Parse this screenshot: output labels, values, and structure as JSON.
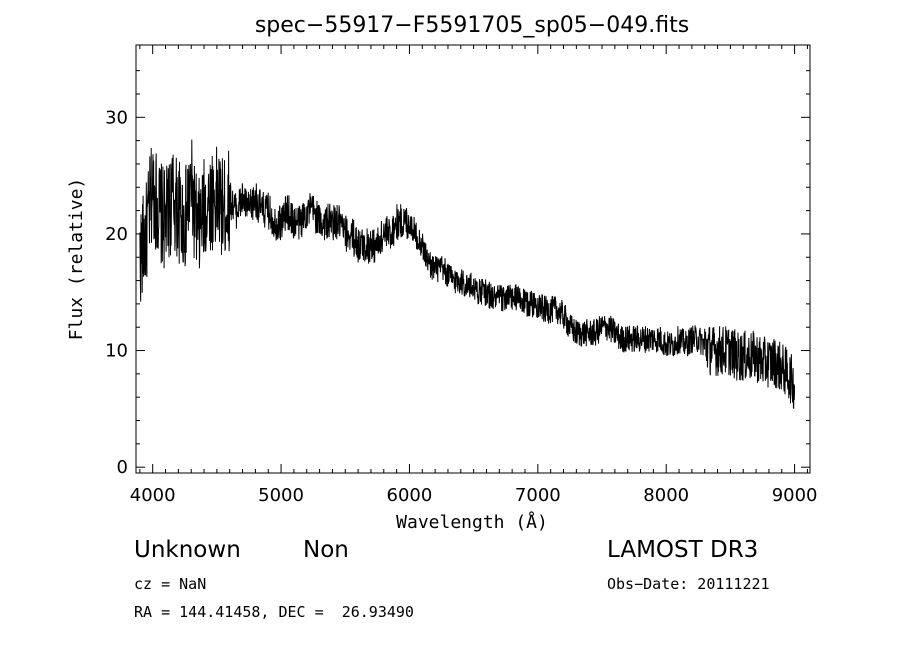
{
  "chart_data": {
    "type": "line",
    "title": "spec−55917−F5591705_sp05−049.fits",
    "xlabel": "Wavelength (Å)",
    "ylabel": "Flux (relative)",
    "xlim": [
      3870,
      9120
    ],
    "ylim": [
      -0.5,
      36.2
    ],
    "xticks": [
      4000,
      5000,
      6000,
      7000,
      8000,
      9000
    ],
    "yticks": [
      0,
      10,
      20,
      30
    ],
    "grid": false,
    "series": [
      {
        "name": "flux",
        "x": [
          3900,
          3950,
          4000,
          4050,
          4100,
          4150,
          4200,
          4250,
          4300,
          4350,
          4400,
          4450,
          4500,
          4550,
          4600,
          4650,
          4700,
          4750,
          4800,
          4850,
          4900,
          4950,
          5000,
          5050,
          5100,
          5150,
          5200,
          5250,
          5300,
          5350,
          5400,
          5450,
          5500,
          5550,
          5600,
          5650,
          5700,
          5750,
          5800,
          5850,
          5900,
          5950,
          6000,
          6050,
          6100,
          6150,
          6200,
          6250,
          6300,
          6350,
          6400,
          6450,
          6500,
          6550,
          6600,
          6650,
          6700,
          6750,
          6800,
          6850,
          6900,
          6950,
          7000,
          7050,
          7100,
          7150,
          7200,
          7250,
          7300,
          7350,
          7400,
          7450,
          7500,
          7550,
          7600,
          7650,
          7700,
          7750,
          7800,
          7850,
          7900,
          7950,
          8000,
          8050,
          8100,
          8150,
          8200,
          8250,
          8300,
          8350,
          8400,
          8450,
          8500,
          8550,
          8600,
          8650,
          8700,
          8750,
          8800,
          8850,
          8900,
          8950,
          9000
        ],
        "y": [
          18,
          20,
          24,
          22,
          21,
          23,
          22,
          21,
          24,
          20,
          22,
          23,
          23,
          22,
          23,
          22,
          23,
          22,
          23,
          22,
          22,
          21,
          21,
          22,
          21,
          21,
          22,
          22,
          21,
          21,
          21,
          21,
          20,
          20,
          19,
          19,
          19,
          19,
          20,
          20,
          21,
          21,
          21,
          20,
          19,
          17.5,
          17,
          17,
          16.5,
          16,
          16,
          15.5,
          15.5,
          15,
          15,
          14.5,
          14.5,
          14.5,
          14.5,
          14.5,
          14,
          14,
          14,
          13.5,
          13.5,
          13.5,
          13,
          12,
          11.5,
          11.5,
          11.5,
          11.5,
          12,
          12,
          11.5,
          11,
          11,
          11,
          11,
          11,
          11,
          11,
          10.5,
          10.5,
          11,
          10.5,
          11,
          11,
          10.5,
          10,
          10,
          10,
          10,
          9.5,
          9.5,
          9.5,
          9.5,
          9,
          9,
          9,
          8.5,
          8,
          7
        ]
      }
    ]
  },
  "footer": {
    "class_label": "Unknown",
    "subclass_label": "Non",
    "survey": "LAMOST DR3",
    "cz": "cz = NaN",
    "obs_date": "Obs−Date: 20111221",
    "radec": "RA = 144.41458, DEC =  26.93490"
  }
}
